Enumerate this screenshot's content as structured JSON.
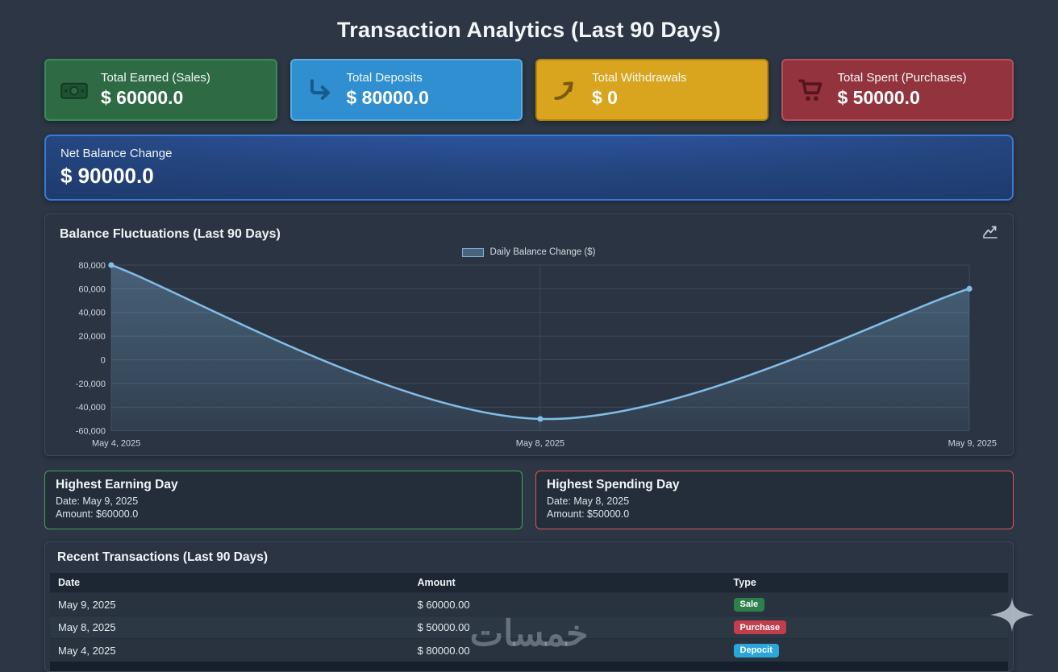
{
  "page": {
    "title": "Transaction Analytics (Last 90 Days)"
  },
  "colors": {
    "background": "#2c3644",
    "card_green": "#2e6b44",
    "card_blue": "#2f8fd0",
    "card_yellow": "#d9a51e",
    "card_red": "#93333d",
    "net_card_border": "#3b79d6",
    "chart_line": "#82bde8",
    "badge_sale": "#2d8049",
    "badge_purchase": "#c23e4f",
    "badge_deposit": "#2ba6d9"
  },
  "stats": [
    {
      "label": "Total Earned (Sales)",
      "value": "$ 60000.0",
      "icon": "banknote-icon",
      "theme": "green"
    },
    {
      "label": "Total Deposits",
      "value": "$ 80000.0",
      "icon": "deposit-arrow-icon",
      "theme": "blue"
    },
    {
      "label": "Total Withdrawals",
      "value": "$ 0",
      "icon": "withdraw-arrow-icon",
      "theme": "yellow"
    },
    {
      "label": "Total Spent (Purchases)",
      "value": "$ 50000.0",
      "icon": "cart-icon",
      "theme": "red"
    }
  ],
  "net_balance": {
    "label": "Net Balance Change",
    "value": "$ 90000.0"
  },
  "chart_data": {
    "type": "line",
    "title": "Balance Fluctuations (Last 90 Days)",
    "legend": "Daily Balance Change ($)",
    "legend_position": "top",
    "x": [
      "May 4, 2025",
      "May 8, 2025",
      "May 9, 2025"
    ],
    "series": [
      {
        "name": "Daily Balance Change ($)",
        "values": [
          80000,
          -50000,
          60000
        ]
      }
    ],
    "ylim": [
      -60000,
      80000
    ],
    "ytick_step": 20000,
    "grid": true,
    "area": true,
    "line_color": "#82bde8"
  },
  "highlights": [
    {
      "title": "Highest Earning Day",
      "date": "Date: May 9, 2025",
      "amount": "Amount: $60000.0",
      "theme": "green"
    },
    {
      "title": "Highest Spending Day",
      "date": "Date: May 8, 2025",
      "amount": "Amount: $50000.0",
      "theme": "red"
    }
  ],
  "transactions": {
    "title": "Recent Transactions (Last 90 Days)",
    "columns": [
      "Date",
      "Amount",
      "Type"
    ],
    "rows": [
      {
        "date": "May 9, 2025",
        "amount": "$ 60000.00",
        "type": "Sale",
        "theme": "green"
      },
      {
        "date": "May 8, 2025",
        "amount": "$ 50000.00",
        "type": "Purchase",
        "theme": "red"
      },
      {
        "date": "May 4, 2025",
        "amount": "$ 80000.00",
        "type": "Depocit",
        "theme": "cyan"
      }
    ]
  },
  "watermark": {
    "text": "خمسات"
  }
}
